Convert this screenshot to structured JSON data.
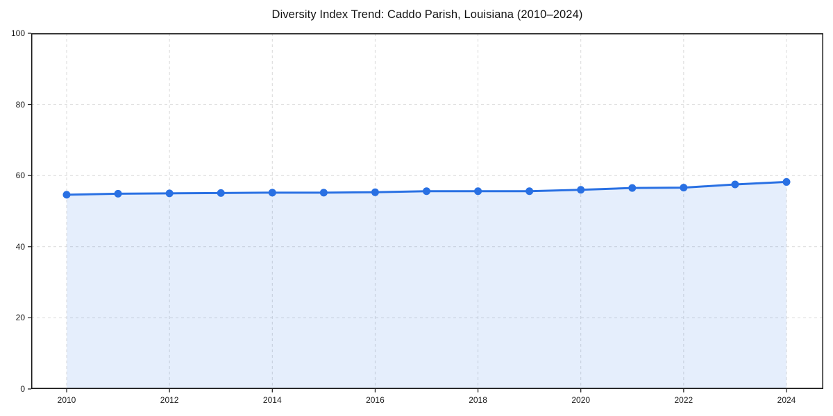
{
  "chart_data": {
    "type": "line",
    "title": "Diversity Index Trend: Caddo Parish, Louisiana (2010–2024)",
    "x": [
      2010,
      2011,
      2012,
      2013,
      2014,
      2015,
      2016,
      2017,
      2018,
      2019,
      2020,
      2021,
      2022,
      2023,
      2024
    ],
    "series": [
      {
        "name": "Diversity Index",
        "values": [
          54.6,
          54.9,
          55.0,
          55.1,
          55.2,
          55.2,
          55.3,
          55.6,
          55.6,
          55.6,
          56.0,
          56.5,
          56.6,
          57.5,
          58.2
        ]
      }
    ],
    "xlabel": "",
    "ylabel": "",
    "ylim": [
      0,
      100
    ],
    "y_ticks": [
      0,
      20,
      40,
      60,
      80,
      100
    ],
    "x_ticks": [
      2010,
      2012,
      2014,
      2016,
      2018,
      2020,
      2022,
      2024
    ],
    "grid": true,
    "grid_style": "dashed",
    "legend_position": "none",
    "marker": "circle",
    "area_fill": true,
    "colors": {
      "line": "#2970e3",
      "marker": "#2970e3",
      "area": "#e5eefb",
      "grid": "#d9d9d9",
      "spine": "#141414",
      "text": "#1a1a1a",
      "background": "#ffffff"
    }
  }
}
